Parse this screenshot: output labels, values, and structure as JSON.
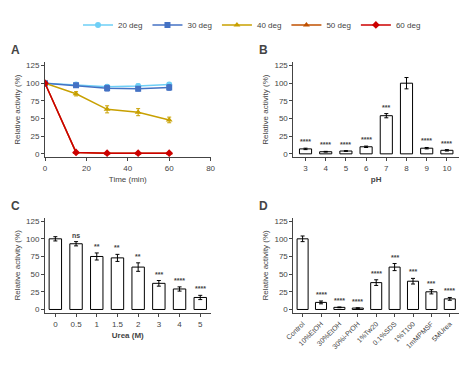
{
  "chart_data": [
    {
      "type": "line",
      "title": "A",
      "xlabel": "Time (min)",
      "ylabel": "Relative activity (%)",
      "x": [
        0,
        15,
        30,
        45,
        60
      ],
      "xlim": [
        0,
        80
      ],
      "xticks": [
        0,
        20,
        40,
        60,
        80
      ],
      "ylim": [
        -5,
        130
      ],
      "yticks": [
        0,
        25,
        50,
        75,
        100,
        125
      ],
      "grid": false,
      "legend": "top",
      "series": [
        {
          "name": "20 deg",
          "color": "#6ECFF6",
          "marker": "circle",
          "values": [
            100,
            98,
            95,
            96,
            98
          ],
          "errors": [
            1.5,
            2,
            3,
            3,
            3
          ]
        },
        {
          "name": "30 deg",
          "color": "#4472C4",
          "marker": "square",
          "values": [
            100,
            97,
            93,
            92,
            94
          ],
          "errors": [
            1.5,
            2,
            4,
            3,
            4
          ]
        },
        {
          "name": "40 deg",
          "color": "#C8A000",
          "marker": "triangle-up",
          "values": [
            100,
            85,
            63,
            59,
            48
          ],
          "errors": [
            1.5,
            3,
            5,
            5,
            4
          ]
        },
        {
          "name": "50 deg",
          "color": "#C05000",
          "marker": "triangle-up",
          "values": [
            100,
            2,
            1,
            1,
            1
          ],
          "errors": [
            1.5,
            1,
            0.5,
            0.5,
            0.5
          ]
        },
        {
          "name": "60 deg",
          "color": "#CC0000",
          "marker": "diamond",
          "values": [
            100,
            2,
            1,
            1,
            1
          ],
          "errors": [
            1.5,
            1,
            0.5,
            0.5,
            0.5
          ]
        }
      ]
    },
    {
      "type": "bar",
      "title": "B",
      "xlabel": "pH",
      "ylabel": "Relative activity (%)",
      "x": [
        3,
        4,
        5,
        6,
        7,
        8,
        9,
        10
      ],
      "xlim": [
        2.4,
        10.6
      ],
      "xticks": [
        3,
        4,
        5,
        6,
        7,
        8,
        9,
        10
      ],
      "ylim": [
        -5,
        130
      ],
      "yticks": [
        0,
        25,
        50,
        75,
        100,
        125
      ],
      "grid": false,
      "color": "#FFFFFF",
      "values": [
        7,
        3,
        4,
        10,
        54,
        100,
        8,
        5
      ],
      "errors": [
        1,
        0.5,
        0.5,
        1,
        3,
        8,
        1,
        1
      ],
      "annotations": [
        "****",
        "****",
        "****",
        "****",
        "***",
        null,
        "****",
        "****"
      ]
    },
    {
      "type": "bar",
      "title": "C",
      "xlabel": "Urea (M)",
      "ylabel": "Relative activity (%)",
      "categories": [
        "0",
        "0.5",
        "1",
        "1.5",
        "2",
        "3",
        "4",
        "5"
      ],
      "ylim": [
        -5,
        130
      ],
      "yticks": [
        0,
        25,
        50,
        75,
        100,
        125
      ],
      "grid": false,
      "color": "#FFFFFF",
      "values": [
        100,
        93,
        75,
        73,
        60,
        37,
        29,
        17
      ],
      "errors": [
        3,
        3,
        5,
        5,
        6,
        4,
        3,
        3
      ],
      "annotations": [
        null,
        "ns",
        "**",
        "**",
        "**",
        "***",
        "****",
        "****"
      ]
    },
    {
      "type": "bar",
      "title": "D",
      "ylabel": "Relative activity (%)",
      "categories": [
        "Control",
        "10%EtOH",
        "30%EtOH",
        "30%i-PrOH",
        "1%Tw20",
        "0.1%SDS",
        "1%T100",
        "1mMPMSF",
        "5MUrea"
      ],
      "ylim": [
        -5,
        130
      ],
      "yticks": [
        0,
        25,
        50,
        75,
        100,
        125
      ],
      "grid": false,
      "color": "#FFFFFF",
      "values": [
        100,
        10,
        3,
        2,
        38,
        60,
        40,
        25,
        15
      ],
      "errors": [
        4,
        2,
        0.5,
        0.3,
        4,
        5,
        4,
        3,
        2
      ],
      "annotations": [
        null,
        "****",
        "****",
        "****",
        "****",
        "***",
        "***",
        "***",
        "****"
      ]
    }
  ]
}
